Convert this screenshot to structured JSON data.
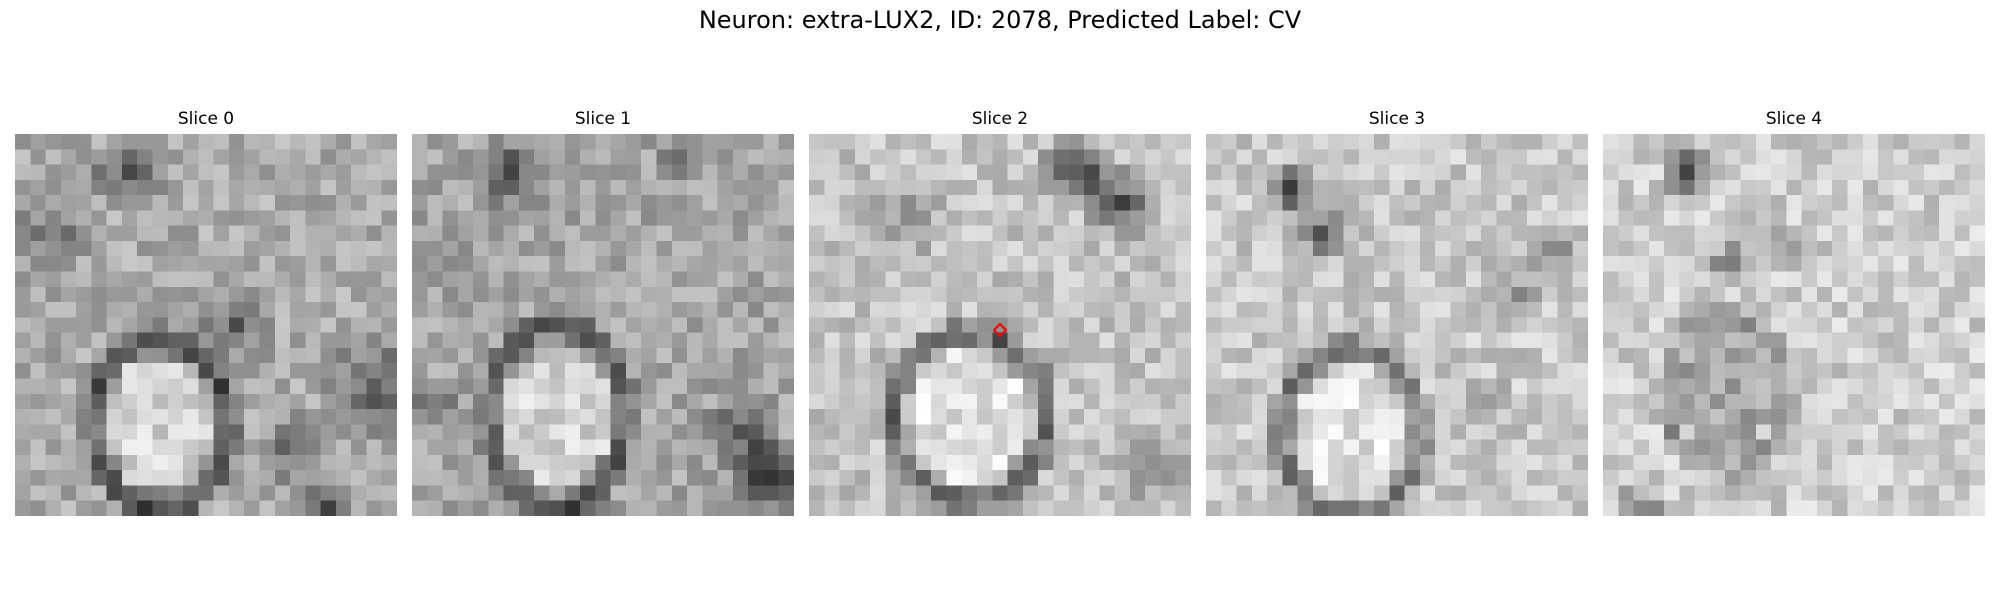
{
  "figure": {
    "title": "Neuron: extra-LUX2, ID: 2078, Predicted Label: CV"
  },
  "panels": [
    {
      "title": "Slice 0"
    },
    {
      "title": "Slice 1"
    },
    {
      "title": "Slice 2"
    },
    {
      "title": "Slice 3"
    },
    {
      "title": "Slice 4"
    }
  ],
  "marker": {
    "color": "#ff0000",
    "shape": "diamond",
    "panel": 2
  },
  "colormap": "gray"
}
